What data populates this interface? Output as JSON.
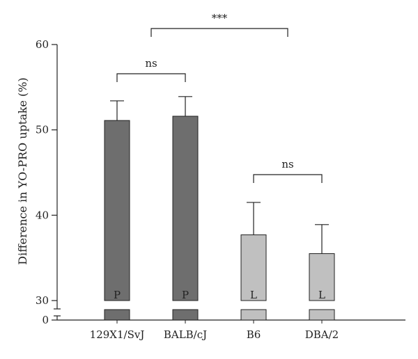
{
  "chart_data": {
    "type": "bar",
    "title": "",
    "xlabel": "",
    "ylabel": "Difference in YO-PRO uptake (%)",
    "categories": [
      "129X1/SvJ",
      "BALB/cJ",
      "B6",
      "DBA/2"
    ],
    "values": [
      51.1,
      51.6,
      37.7,
      35.5
    ],
    "errors": [
      2.3,
      2.3,
      3.8,
      3.4
    ],
    "bar_letters": [
      "P",
      "P",
      "L",
      "L"
    ],
    "bar_colors": [
      "#6e6e6e",
      "#6e6e6e",
      "#c0c0c0",
      "#c0c0c0"
    ],
    "ylim": [
      30,
      60
    ],
    "yticks": [
      30,
      40,
      50,
      60
    ],
    "axis_break": {
      "lower_tick": 0
    },
    "significance": [
      {
        "from": 0,
        "to": 1,
        "label": "ns"
      },
      {
        "from": 2,
        "to": 3,
        "label": "ns"
      },
      {
        "from": 0.5,
        "to": 2.5,
        "label": "***"
      }
    ],
    "grid": false,
    "legend": false
  }
}
